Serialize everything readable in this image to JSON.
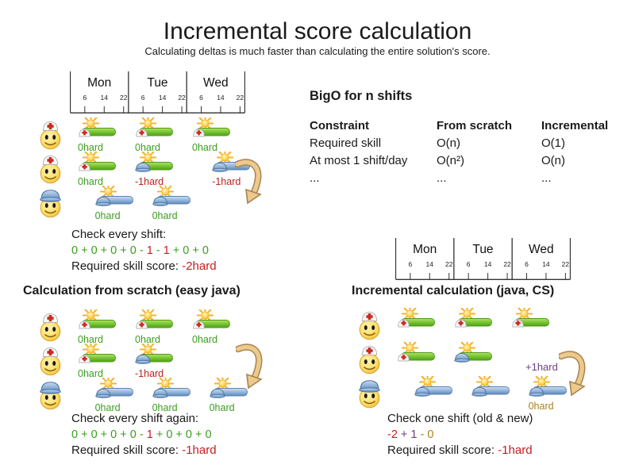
{
  "title": "Incremental score calculation",
  "subtitle": "Calculating deltas is much faster than calculating the entire solution's score.",
  "palette": {
    "green": "#3a9e1e",
    "red": "#bf2020",
    "purple": "#6f4180",
    "gold": "#a8831f",
    "text": "#1a1a1a",
    "arrow_fill": "#ecca8e",
    "arrow_stroke": "#a8834f"
  },
  "timeline": {
    "days": [
      "Mon",
      "Tue",
      "Wed"
    ],
    "ticks": [
      "6",
      "14",
      "22"
    ]
  },
  "bigo": {
    "heading": "BigO for n shifts",
    "columns": [
      "Constraint",
      "From scratch",
      "Incremental"
    ],
    "rows": [
      [
        "Required skill",
        "O(n)",
        "O(1)"
      ],
      [
        "At most 1 shift/day",
        "O(n²)",
        "O(n)"
      ],
      [
        "...",
        "...",
        "..."
      ]
    ]
  },
  "sections": {
    "from_scratch": {
      "heading": "Calculation from scratch (easy java)"
    },
    "incremental": {
      "heading": "Incremental calculation (java, CS)"
    }
  },
  "diagrams": {
    "top_left": {
      "rows": [
        {
          "person": "nurse",
          "shifts": [
            {
              "col": 0,
              "bar": "green",
              "hat": "nurse",
              "label": "0hard",
              "color": "green"
            },
            {
              "col": 1,
              "bar": "green",
              "hat": "nurse",
              "label": "0hard",
              "color": "green"
            },
            {
              "col": 2,
              "bar": "green",
              "hat": "nurse",
              "label": "0hard",
              "color": "green"
            }
          ]
        },
        {
          "person": "nurse",
          "shifts": [
            {
              "col": 0,
              "bar": "green",
              "hat": "nurse",
              "label": "0hard",
              "color": "green"
            },
            {
              "col": 1,
              "bar": "green",
              "hat": "blue",
              "label": "-1hard",
              "color": "red"
            },
            {
              "col": 2.35,
              "bar": "blue",
              "hat": "blue",
              "label": "-1hard",
              "color": "red"
            }
          ]
        },
        {
          "person": "builder",
          "shifts": [
            {
              "col": 0.3,
              "bar": "blue",
              "hat": "blue",
              "label": "0hard",
              "color": "green"
            },
            {
              "col": 1.3,
              "bar": "blue",
              "hat": "blue",
              "label": "0hard",
              "color": "green"
            }
          ]
        }
      ]
    },
    "bottom_left": {
      "rows": [
        {
          "person": "nurse",
          "shifts": [
            {
              "col": 0,
              "bar": "green",
              "hat": "nurse",
              "label": "0hard",
              "color": "green"
            },
            {
              "col": 1,
              "bar": "green",
              "hat": "nurse",
              "label": "0hard",
              "color": "green"
            },
            {
              "col": 2,
              "bar": "green",
              "hat": "nurse",
              "label": "0hard",
              "color": "green"
            }
          ]
        },
        {
          "person": "nurse",
          "shifts": [
            {
              "col": 0,
              "bar": "green",
              "hat": "nurse",
              "label": "0hard",
              "color": "green"
            },
            {
              "col": 1,
              "bar": "green",
              "hat": "blue",
              "label": "-1hard",
              "color": "red"
            }
          ]
        },
        {
          "person": "builder",
          "shifts": [
            {
              "col": 0.3,
              "bar": "blue",
              "hat": "blue",
              "label": "0hard",
              "color": "green"
            },
            {
              "col": 1.3,
              "bar": "blue",
              "hat": "blue",
              "label": "0hard",
              "color": "green"
            },
            {
              "col": 2.3,
              "bar": "blue",
              "hat": "blue",
              "label": "0hard",
              "color": "green"
            }
          ]
        }
      ]
    },
    "bottom_right": {
      "annotation": {
        "text": "+1hard",
        "color": "purple"
      },
      "rows": [
        {
          "person": "nurse",
          "shifts": [
            {
              "col": 0,
              "bar": "green",
              "hat": "nurse",
              "label": "",
              "color": "green"
            },
            {
              "col": 1,
              "bar": "green",
              "hat": "nurse",
              "label": "",
              "color": "green"
            },
            {
              "col": 2,
              "bar": "green",
              "hat": "nurse",
              "label": "",
              "color": "green"
            }
          ]
        },
        {
          "person": "nurse",
          "shifts": [
            {
              "col": 0,
              "bar": "green",
              "hat": "nurse",
              "label": "",
              "color": "green"
            },
            {
              "col": 1,
              "bar": "green",
              "hat": "blue",
              "label": "",
              "color": "green"
            }
          ]
        },
        {
          "person": "builder",
          "shifts": [
            {
              "col": 0.3,
              "bar": "blue",
              "hat": "blue",
              "label": "",
              "color": "green"
            },
            {
              "col": 1.3,
              "bar": "blue",
              "hat": "blue",
              "label": "",
              "color": "green"
            },
            {
              "col": 2.3,
              "bar": "blue",
              "hat": "blue",
              "label": "0hard",
              "color": "gold"
            }
          ]
        }
      ]
    }
  },
  "checks": {
    "top_left": {
      "title": "Check every shift:",
      "sum": [
        {
          "t": "0 + 0 + 0 + 0 - ",
          "c": "green"
        },
        {
          "t": "1",
          "c": "red"
        },
        {
          "t": " - ",
          "c": "green"
        },
        {
          "t": "1",
          "c": "red"
        },
        {
          "t": " + 0 + 0",
          "c": "green"
        }
      ],
      "score_label": "Required skill score: ",
      "score": "-2hard",
      "score_color": "red"
    },
    "bottom_left": {
      "title": "Check every shift again:",
      "sum": [
        {
          "t": "0 + 0 + 0 + 0 - ",
          "c": "green"
        },
        {
          "t": "1",
          "c": "red"
        },
        {
          "t": " + 0 + 0 + 0",
          "c": "green"
        }
      ],
      "score_label": "Required skill score: ",
      "score": "-1hard",
      "score_color": "red"
    },
    "bottom_right": {
      "title": "Check one shift (old & new)",
      "sum": [
        {
          "t": "-2",
          "c": "red"
        },
        {
          "t": " + 1",
          "c": "purple"
        },
        {
          "t": " - 0",
          "c": "gold"
        }
      ],
      "score_label": "Required skill score: ",
      "score": "-1hard",
      "score_color": "red"
    }
  }
}
